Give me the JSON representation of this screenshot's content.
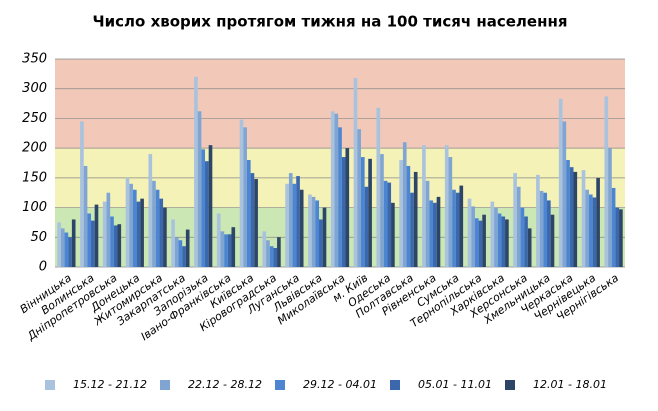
{
  "chart_data": {
    "type": "bar",
    "title": "Число хворих протягом тижня на 100 тисяч населення",
    "categories": [
      "Вінницька",
      "Волинська",
      "Дніпропетровська",
      "Донецька",
      "Житомирська",
      "Закарпатська",
      "Запорізька",
      "Івано-Франківська",
      "Київська",
      "Кіровоградська",
      "Луганська",
      "Львівська",
      "Миколаївська",
      "м. Київ",
      "Одеська",
      "Полтавська",
      "Рівненська",
      "Сумська",
      "Тернопільська",
      "Харківська",
      "Херсонська",
      "Хмельницька",
      "Черкаська",
      "Чернівецька",
      "Чернігівська"
    ],
    "series": [
      {
        "name": "15.12 - 21.12",
        "color": "#a9c3de",
        "values": [
          75,
          245,
          110,
          150,
          190,
          80,
          320,
          90,
          248,
          60,
          140,
          122,
          262,
          318,
          268,
          180,
          205,
          205,
          115,
          110,
          158,
          155,
          283,
          163,
          287
        ]
      },
      {
        "name": "22.12 - 28.12",
        "color": "#81a5d3",
        "values": [
          65,
          170,
          125,
          140,
          145,
          50,
          262,
          60,
          235,
          45,
          158,
          118,
          258,
          232,
          190,
          210,
          145,
          185,
          102,
          100,
          135,
          128,
          245,
          130,
          200
        ]
      },
      {
        "name": "29.12 - 04.01",
        "color": "#4c86d2",
        "values": [
          58,
          90,
          85,
          130,
          130,
          45,
          198,
          55,
          180,
          35,
          140,
          112,
          235,
          185,
          145,
          170,
          112,
          130,
          82,
          90,
          100,
          125,
          180,
          122,
          133
        ]
      },
      {
        "name": "05.01 - 11.01",
        "color": "#3b68ad",
        "values": [
          50,
          78,
          70,
          110,
          115,
          35,
          178,
          55,
          158,
          32,
          153,
          80,
          185,
          135,
          142,
          125,
          108,
          125,
          78,
          85,
          85,
          112,
          168,
          117,
          100
        ]
      },
      {
        "name": "12.01 - 18.01",
        "color": "#2d4668",
        "values": [
          80,
          105,
          72,
          115,
          100,
          63,
          205,
          67,
          148,
          50,
          130,
          100,
          200,
          182,
          108,
          160,
          118,
          137,
          88,
          80,
          65,
          88,
          160,
          150,
          97
        ]
      }
    ],
    "ylim": [
      0,
      350
    ],
    "yticks": [
      0,
      50,
      100,
      150,
      200,
      250,
      300,
      350
    ],
    "grid": true,
    "bands": [
      {
        "from": 0,
        "to": 100,
        "color": "#cbe8b4"
      },
      {
        "from": 100,
        "to": 200,
        "color": "#f4f2b6"
      },
      {
        "from": 200,
        "to": 350,
        "color": "#f2c8b8"
      }
    ],
    "legend": "bottom"
  }
}
